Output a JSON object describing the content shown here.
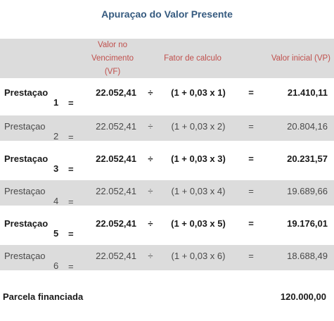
{
  "title": "Apuraçao do Valor Presente",
  "headers": {
    "vf_line1": "Valor no",
    "vf_line2": "Vencimento",
    "vf_line3": "(VF)",
    "fator": "Fator de calculo",
    "vp": "Valor inicial (VP)"
  },
  "rows": [
    {
      "label": "Prestaçao",
      "num": "1",
      "eq1": "=",
      "vf": "22.052,41",
      "div": "÷",
      "fator": "(1 + 0,03 x 1)",
      "eq2": "=",
      "vp": "21.410,11"
    },
    {
      "label": "Prestaçao",
      "num": "2",
      "eq1": "=",
      "vf": "22.052,41",
      "div": "÷",
      "fator": "(1 + 0,03 x 2)",
      "eq2": "=",
      "vp": "20.804,16"
    },
    {
      "label": "Prestaçao",
      "num": "3",
      "eq1": "=",
      "vf": "22.052,41",
      "div": "÷",
      "fator": "(1 + 0,03 x 3)",
      "eq2": "=",
      "vp": "20.231,57"
    },
    {
      "label": "Prestaçao",
      "num": "4",
      "eq1": "=",
      "vf": "22.052,41",
      "div": "÷",
      "fator": "(1 + 0,03 x 4)",
      "eq2": "=",
      "vp": "19.689,66"
    },
    {
      "label": "Prestaçao",
      "num": "5",
      "eq1": "=",
      "vf": "22.052,41",
      "div": "÷",
      "fator": "(1 + 0,03 x 5)",
      "eq2": "=",
      "vp": "19.176,01"
    },
    {
      "label": "Prestaçao",
      "num": "6",
      "eq1": "=",
      "vf": "22.052,41",
      "div": "÷",
      "fator": "(1 + 0,03 x 6)",
      "eq2": "=",
      "vp": "18.688,49"
    }
  ],
  "footer": {
    "label": "Parcela financiada",
    "value": "120.000,00"
  },
  "colors": {
    "title": "#355a7f",
    "header_text": "#c0504d",
    "band": "#dcdcdc"
  }
}
